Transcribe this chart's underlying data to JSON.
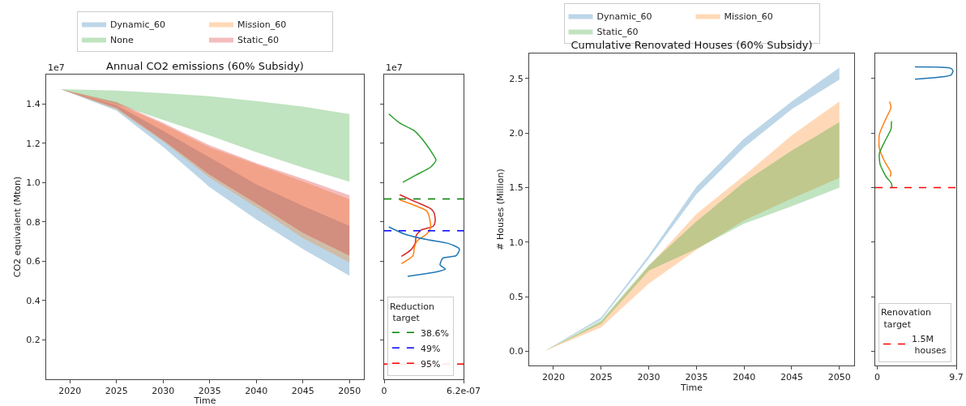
{
  "chart_data": [
    {
      "type": "area",
      "title": "Annual CO2 emissions (60% Subsidy)",
      "xlabel": "Time",
      "ylabel": "CO2 equivalent (Mton)",
      "annotations": [
        "1e7"
      ],
      "x": [
        2019,
        2025,
        2030,
        2035,
        2040,
        2045,
        2050
      ],
      "series": [
        {
          "name": "Dynamic_60",
          "color": "#bcd6e8",
          "values": [
            null,
            null,
            null,
            null,
            null,
            null,
            null
          ],
          "upper": [
            1.476,
            1.394,
            1.264,
            1.128,
            0.991,
            0.882,
            0.78
          ],
          "lower": [
            1.476,
            1.367,
            1.182,
            0.977,
            0.813,
            0.663,
            0.527
          ]
        },
        {
          "name": "Mission_60",
          "color": "#ffd9b7",
          "values": [
            null,
            null,
            null,
            null,
            null,
            null,
            null
          ],
          "upper": [
            1.476,
            1.404,
            1.298,
            1.18,
            1.093,
            1.007,
            0.916
          ],
          "lower": [
            1.476,
            1.373,
            1.21,
            1.025,
            0.875,
            0.718,
            0.595
          ]
        },
        {
          "name": "None",
          "color": "#c0e3c0",
          "values": [
            null,
            null,
            null,
            null,
            null,
            null,
            null
          ],
          "upper": [
            1.476,
            1.469,
            1.455,
            1.44,
            1.415,
            1.387,
            1.349
          ],
          "lower": [
            1.476,
            1.4,
            1.319,
            1.24,
            1.155,
            1.077,
            1.005
          ]
        },
        {
          "name": "Static_60",
          "color": "#f3bebe",
          "values": [
            null,
            null,
            null,
            null,
            null,
            null,
            null
          ],
          "upper": [
            1.476,
            1.41,
            1.305,
            1.19,
            1.1,
            1.02,
            0.936
          ],
          "lower": [
            1.476,
            1.38,
            1.216,
            1.04,
            0.895,
            0.745,
            0.629
          ]
        }
      ],
      "xlim": [
        2017.45,
        2051.55
      ],
      "xticks": [
        2020,
        2025,
        2030,
        2035,
        2040,
        2045,
        2050
      ],
      "ylim": [
        0,
        1.55
      ],
      "yticks": [
        0.2,
        0.4,
        0.6,
        0.8,
        {
          "value": 1,
          "label": "1.0"
        },
        1.2,
        1.4
      ],
      "grid": false,
      "legend": "top"
    },
    {
      "type": "line",
      "annotations": [
        "1e7"
      ],
      "legend_title": "Reduction\n target",
      "series": [
        {
          "color": "#2ca02c",
          "x": [
            3.6e-08,
            1.2e-07,
            2.36e-07,
            3.21e-07,
            3.84e-07,
            4.05e-07,
            3.63e-07,
            2.47e-07,
            1.46e-07
          ],
          "values": [
            1.35,
            1.304,
            1.264,
            1.202,
            1.141,
            1.114,
            1.079,
            1.038,
            1.002
          ]
        },
        {
          "color": "#d62728",
          "x": [
            1.22e-07,
            2.47e-07,
            3.63e-07,
            3.9e-07,
            3.99e-07,
            3.84e-07,
            2.89e-07,
            2.51e-07,
            2.42e-07,
            2.05e-07,
            1.35e-07
          ],
          "values": [
            0.939,
            0.902,
            0.868,
            0.847,
            0.807,
            0.779,
            0.759,
            0.732,
            0.691,
            0.656,
            0.625
          ]
        },
        {
          "color": "#ff7f0e",
          "x": [
            1.2e-07,
            2.47e-07,
            3.31e-07,
            3.52e-07,
            3.63e-07,
            3.31e-07,
            2.57e-07,
            2.36e-07,
            2.26e-07,
            1.35e-07
          ],
          "values": [
            0.913,
            0.882,
            0.857,
            0.827,
            0.772,
            0.738,
            0.704,
            0.67,
            0.629,
            0.588
          ]
        },
        {
          "color": "#1f77b4",
          "x": [
            3.6e-08,
            1.62e-07,
            3.31e-07,
            5e-07,
            5.88e-07,
            5.63e-07,
            4.58e-07,
            4.37e-07,
            4.79e-07,
            4.16e-07,
            1.83e-07
          ],
          "values": [
            0.775,
            0.738,
            0.711,
            0.691,
            0.663,
            0.629,
            0.616,
            0.581,
            0.561,
            0.547,
            0.524
          ]
        },
        {
          "name": "38.6%",
          "color": "#008000",
          "line_style": "dashed",
          "x": [
            0,
            6.2e-07
          ],
          "values": [
            0.917,
            0.917
          ]
        },
        {
          "name": "49%",
          "color": "#0000ff",
          "line_style": "dashed",
          "x": [
            0,
            6.2e-07
          ],
          "values": [
            0.755,
            0.755
          ]
        },
        {
          "name": "95%",
          "color": "#ff0000",
          "line_style": "dashed",
          "x": [
            0,
            6.2e-07
          ],
          "values": [
            0.077,
            0.077
          ]
        }
      ],
      "xlim": [
        0,
        6.2e-07
      ],
      "xticks": [
        0,
        {
          "value": 6.2e-07,
          "label": "6.2e-07"
        }
      ],
      "ylim": [
        0,
        1.55
      ],
      "yticks": [
        {
          "value": 0.2,
          "label": null
        },
        {
          "value": 0.4,
          "label": null
        },
        {
          "value": 0.6,
          "label": null
        },
        {
          "value": 0.8,
          "label": null
        },
        {
          "value": 1,
          "label": null
        },
        {
          "value": 1.2,
          "label": null
        },
        {
          "value": 1.4,
          "label": null
        }
      ],
      "tick_labels": "x",
      "grid": false,
      "legend": "bottom",
      "marker": "none",
      "line_style": "solid"
    },
    {
      "type": "area",
      "title": "Cumulative Renovated Houses (60% Subsidy)",
      "xlabel": "Time",
      "ylabel": "# Houses (Million)",
      "x": [
        2019,
        2025,
        2030,
        2035,
        2040,
        2045,
        2050
      ],
      "series": [
        {
          "name": "Dynamic_60",
          "color": "#bcd6e8",
          "values": [
            null,
            null,
            null,
            null,
            null,
            null,
            null
          ],
          "upper": [
            0,
            0.31,
            0.88,
            1.51,
            1.95,
            2.29,
            2.6
          ],
          "lower": [
            0,
            0.29,
            0.85,
            1.44,
            1.87,
            2.22,
            2.49
          ]
        },
        {
          "name": "Mission_60",
          "color": "#ffd9b7",
          "values": [
            null,
            null,
            null,
            null,
            null,
            null,
            null
          ],
          "upper": [
            0,
            0.27,
            0.78,
            1.26,
            1.61,
            1.98,
            2.29
          ],
          "lower": [
            0,
            0.22,
            0.62,
            0.93,
            1.2,
            1.4,
            1.59
          ]
        },
        {
          "name": "Static_60",
          "color": "#c0e3c0",
          "values": [
            null,
            null,
            null,
            null,
            null,
            null,
            null
          ],
          "upper": [
            0,
            0.285,
            0.79,
            1.19,
            1.55,
            1.84,
            2.1
          ],
          "lower": [
            0,
            0.25,
            0.74,
            0.94,
            1.17,
            1.33,
            1.5
          ]
        }
      ],
      "xlim": [
        2017.45,
        2051.55
      ],
      "xticks": [
        2020,
        2025,
        2030,
        2035,
        2040,
        2045,
        2050
      ],
      "ylim": [
        -0.13,
        2.73
      ],
      "yticks": [
        {
          "value": 0,
          "label": "0.0"
        },
        0.5,
        {
          "value": 1,
          "label": "1.0"
        },
        1.5,
        {
          "value": 2,
          "label": "2.0"
        },
        2.5
      ],
      "grid": false,
      "legend": "top"
    },
    {
      "type": "line",
      "legend_title": "Renovation\n target",
      "series": [
        {
          "color": "#1f77b4",
          "x": [
            4.63,
            9.04,
            9.3,
            9.04,
            4.63
          ],
          "values": [
            2.607,
            2.594,
            2.57,
            2.532,
            2.495
          ]
        },
        {
          "color": "#ff7f0e",
          "x": [
            1.52,
            1.69,
            1.09,
            0.26,
            0.26,
            0.93,
            1.69,
            1.59
          ],
          "values": [
            2.289,
            2.234,
            2.135,
            1.986,
            1.862,
            1.738,
            1.639,
            1.601
          ]
        },
        {
          "color": "#2ca02c",
          "x": [
            1.75,
            1.69,
            0.93,
            0.26,
            0.36,
            1.09,
            1.75,
            1.82
          ],
          "values": [
            2.11,
            2.036,
            1.924,
            1.812,
            1.713,
            1.601,
            1.539,
            1.5
          ]
        }
      ],
      "ref_lines": [
        {
          "axis": "y",
          "value": 1.5,
          "label": "1.5M\n houses",
          "color": "#ff0000",
          "line_style": "dashed"
        }
      ],
      "xlim": [
        -0.24,
        9.7
      ],
      "xticks": [
        0,
        9.7
      ],
      "ylim": [
        -0.13,
        2.73
      ],
      "yticks": [
        {
          "value": 0,
          "label": null
        },
        {
          "value": 0.5,
          "label": null
        },
        {
          "value": 1,
          "label": null
        },
        {
          "value": 1.5,
          "label": null
        },
        {
          "value": 2,
          "label": null
        },
        {
          "value": 2.5,
          "label": null
        }
      ],
      "tick_labels": "x",
      "grid": false,
      "legend": "bottom",
      "marker": "none",
      "line_style": "solid"
    }
  ]
}
